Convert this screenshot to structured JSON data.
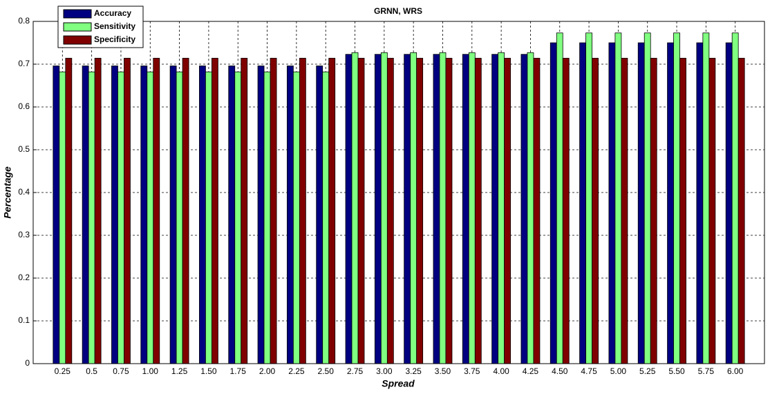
{
  "chart_data": {
    "type": "bar",
    "title": "GRNN, WRS",
    "x_label": "Spread",
    "y_label": "Percentage",
    "categories": [
      "0.25",
      "0.5",
      "0.75",
      "1.00",
      "1.25",
      "1.50",
      "1.75",
      "2.00",
      "2.25",
      "2.50",
      "2.75",
      "3.00",
      "3.25",
      "3.50",
      "3.75",
      "4.00",
      "4.25",
      "4.50",
      "4.75",
      "5.00",
      "5.25",
      "5.50",
      "5.75",
      "6.00"
    ],
    "series": [
      {
        "name": "Accuracy",
        "color": "#000080",
        "values": [
          0.696,
          0.696,
          0.696,
          0.696,
          0.696,
          0.696,
          0.696,
          0.696,
          0.696,
          0.696,
          0.723,
          0.723,
          0.723,
          0.723,
          0.723,
          0.723,
          0.723,
          0.75,
          0.75,
          0.75,
          0.75,
          0.75,
          0.75,
          0.75
        ]
      },
      {
        "name": "Sensitivity",
        "color": "#80ff80",
        "values": [
          0.682,
          0.682,
          0.682,
          0.682,
          0.682,
          0.682,
          0.682,
          0.682,
          0.682,
          0.682,
          0.727,
          0.727,
          0.727,
          0.727,
          0.727,
          0.727,
          0.727,
          0.773,
          0.773,
          0.773,
          0.773,
          0.773,
          0.773,
          0.773
        ]
      },
      {
        "name": "Specificity",
        "color": "#800000",
        "values": [
          0.714,
          0.714,
          0.714,
          0.714,
          0.714,
          0.714,
          0.714,
          0.714,
          0.714,
          0.714,
          0.714,
          0.714,
          0.714,
          0.714,
          0.714,
          0.714,
          0.714,
          0.714,
          0.714,
          0.714,
          0.714,
          0.714,
          0.714,
          0.714
        ]
      }
    ],
    "ylim": [
      0,
      0.8
    ],
    "yticks": [
      0,
      0.1,
      0.2,
      0.3,
      0.4,
      0.5,
      0.6,
      0.7,
      0.8
    ],
    "grid": true,
    "legend": "upper-left"
  }
}
